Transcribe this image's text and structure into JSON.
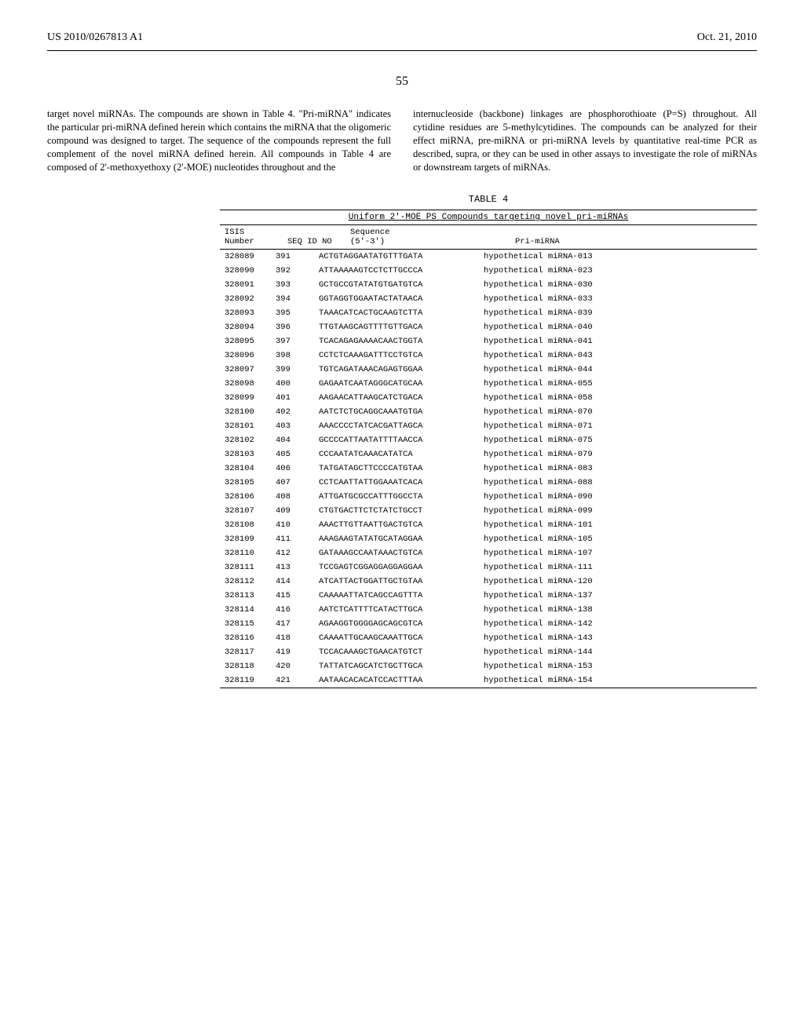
{
  "header": {
    "pub": "US 2010/0267813 A1",
    "date": "Oct. 21, 2010"
  },
  "pagenum": "55",
  "para_left": "target novel miRNAs. The compounds are shown in Table 4. \"Pri-miRNA\" indicates the particular pri-miRNA defined herein which contains the miRNA that the oligomeric compound was designed to target. The sequence of the compounds represent the full complement of the novel miRNA defined herein. All compounds in Table 4 are composed of 2'-methoxyethoxy (2'-MOE) nucleotides throughout and the",
  "para_right": "internucleoside (backbone) linkages are phosphorothioate (P=S) throughout. All cytidine residues are 5-methylcytidines. The compounds can be analyzed for their effect miRNA, pre-miRNA or pri-miRNA levels by quantitative real-time PCR as described, supra, or they can be used in other assays to investigate the role of miRNAs or downstream targets of miRNAs.",
  "table": {
    "caption": "TABLE 4",
    "title": "Uniform 2'-MOE PS Compounds targeting novel pri-miRNAs",
    "head": {
      "c1a": "ISIS",
      "c1b": "Number",
      "c2": "SEQ ID NO",
      "c3a": "Sequence",
      "c3b": "(5'-3')",
      "c4": "Pri-miRNA"
    },
    "rows": [
      {
        "isis": "328089",
        "seq": "391",
        "sequence": "ACTGTAGGAATATGTTTGATA",
        "pri": "hypothetical miRNA-013"
      },
      {
        "isis": "328090",
        "seq": "392",
        "sequence": "ATTAAAAAGTCCTCTTGCCCA",
        "pri": "hypothetical miRNA-023"
      },
      {
        "isis": "328091",
        "seq": "393",
        "sequence": "GCTGCCGTATATGTGATGTCA",
        "pri": "hypothetical miRNA-030"
      },
      {
        "isis": "328092",
        "seq": "394",
        "sequence": "GGTAGGTGGAATACTATAACA",
        "pri": "hypothetical miRNA-033"
      },
      {
        "isis": "328093",
        "seq": "395",
        "sequence": "TAAACATCACTGCAAGTCTTA",
        "pri": "hypothetical miRNA-039"
      },
      {
        "isis": "328094",
        "seq": "396",
        "sequence": "TTGTAAGCAGTTTTGTTGACA",
        "pri": "hypothetical miRNA-040"
      },
      {
        "isis": "328095",
        "seq": "397",
        "sequence": "TCACAGAGAAAACAACTGGTA",
        "pri": "hypothetical miRNA-041"
      },
      {
        "isis": "328096",
        "seq": "398",
        "sequence": "CCTCTCAAAGATTTCCTGTCA",
        "pri": "hypothetical miRNA-043"
      },
      {
        "isis": "328097",
        "seq": "399",
        "sequence": "TGTCAGATAAACAGAGTGGAA",
        "pri": "hypothetical miRNA-044"
      },
      {
        "isis": "328098",
        "seq": "400",
        "sequence": "GAGAATCAATAGGGCATGCAA",
        "pri": "hypothetical miRNA-055"
      },
      {
        "isis": "328099",
        "seq": "401",
        "sequence": "AAGAACATTAAGCATCTGACA",
        "pri": "hypothetical miRNA-058"
      },
      {
        "isis": "328100",
        "seq": "402",
        "sequence": "AATCTCTGCAGGCAAATGTGA",
        "pri": "hypothetical miRNA-070"
      },
      {
        "isis": "328101",
        "seq": "403",
        "sequence": "AAACCCCTATCACGATTAGCA",
        "pri": "hypothetical miRNA-071"
      },
      {
        "isis": "328102",
        "seq": "404",
        "sequence": "GCCCCATTAATATTTTAACCA",
        "pri": "hypothetical miRNA-075"
      },
      {
        "isis": "328103",
        "seq": "405",
        "sequence": "CCCAATATCAAACATATCA",
        "pri": "hypothetical miRNA-079"
      },
      {
        "isis": "328104",
        "seq": "406",
        "sequence": "TATGATAGCTTCCCCATGTAA",
        "pri": "hypothetical miRNA-083"
      },
      {
        "isis": "328105",
        "seq": "407",
        "sequence": "CCTCAATTATTGGAAATCACA",
        "pri": "hypothetical miRNA-088"
      },
      {
        "isis": "328106",
        "seq": "408",
        "sequence": "ATTGATGCGCCATTTGGCCTA",
        "pri": "hypothetical miRNA-090"
      },
      {
        "isis": "328107",
        "seq": "409",
        "sequence": "CTGTGACTTCTCTATCTGCCT",
        "pri": "hypothetical miRNA-099"
      },
      {
        "isis": "328108",
        "seq": "410",
        "sequence": "AAACTTGTTAATTGACTGTCA",
        "pri": "hypothetical miRNA-101"
      },
      {
        "isis": "328109",
        "seq": "411",
        "sequence": "AAAGAAGTATATGCATAGGAA",
        "pri": "hypothetical miRNA-105"
      },
      {
        "isis": "328110",
        "seq": "412",
        "sequence": "GATAAAGCCAATAAACTGTCA",
        "pri": "hypothetical miRNA-107"
      },
      {
        "isis": "328111",
        "seq": "413",
        "sequence": "TCCGAGTCGGAGGAGGAGGAA",
        "pri": "hypothetical miRNA-111"
      },
      {
        "isis": "328112",
        "seq": "414",
        "sequence": "ATCATTACTGGATTGCTGTAA",
        "pri": "hypothetical miRNA-120"
      },
      {
        "isis": "328113",
        "seq": "415",
        "sequence": "CAAAAATTATCAGCCAGTTTA",
        "pri": "hypothetical miRNA-137"
      },
      {
        "isis": "328114",
        "seq": "416",
        "sequence": "AATCTCATTTTCATACTTGCA",
        "pri": "hypothetical miRNA-138"
      },
      {
        "isis": "328115",
        "seq": "417",
        "sequence": "AGAAGGTGGGGAGCAGCGTCA",
        "pri": "hypothetical miRNA-142"
      },
      {
        "isis": "328116",
        "seq": "418",
        "sequence": "CAAAATTGCAAGCAAATTGCA",
        "pri": "hypothetical miRNA-143"
      },
      {
        "isis": "328117",
        "seq": "419",
        "sequence": "TCCACAAAGCTGAACATGTCT",
        "pri": "hypothetical miRNA-144"
      },
      {
        "isis": "328118",
        "seq": "420",
        "sequence": "TATTATCAGCATCTGCTTGCA",
        "pri": "hypothetical miRNA-153"
      },
      {
        "isis": "328119",
        "seq": "421",
        "sequence": "AATAACACACATCCACTTTAA",
        "pri": "hypothetical miRNA-154"
      }
    ]
  }
}
